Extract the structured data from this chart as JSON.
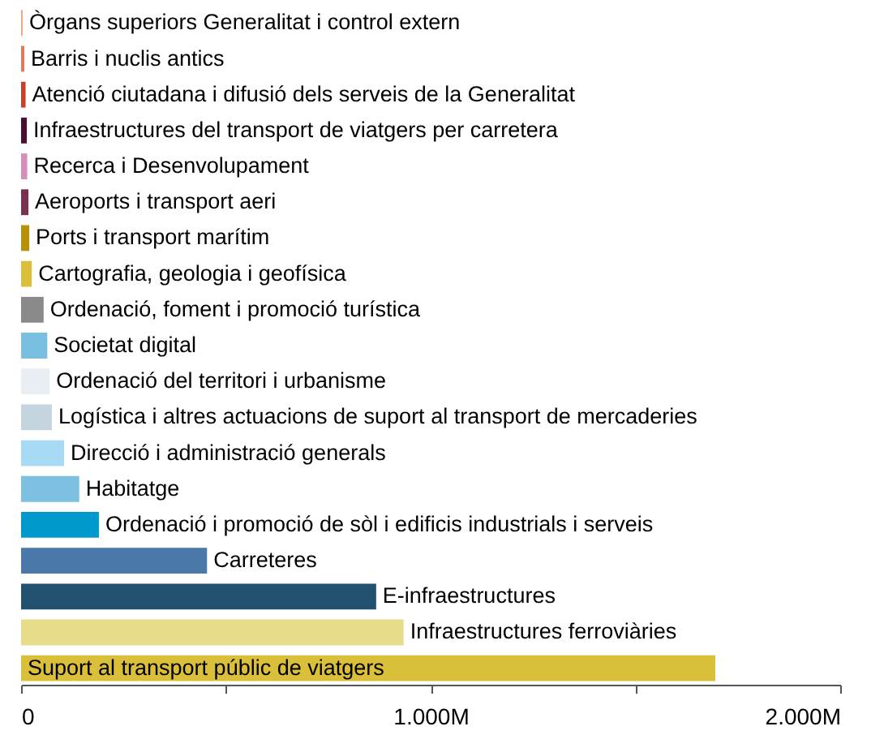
{
  "chart_data": {
    "type": "bar",
    "orientation": "horizontal",
    "categories": [
      "Òrgans superiors Generalitat i control extern",
      "Barris i nuclis antics",
      "Atenció ciutadana i difusió dels serveis de la Generalitat",
      "Infraestructures del transport de viatgers per carretera",
      "Recerca i Desenvolupament",
      "Aeroports i transport aeri",
      "Ports i transport marítim",
      "Cartografia, geologia i geofísica",
      "Ordenació, foment i promoció turística",
      "Societat digital",
      "Ordenació del territori i urbanisme",
      "Logística i altres actuacions de suport al transport de mercaderies",
      "Direcció i administració generals",
      "Habitatge",
      "Ordenació i promoció de sòl i edificis industrials i serveis",
      "Carreteres",
      "E-infraestructures",
      "Infraestructures ferroviàries",
      "Suport al transport públic de viatgers"
    ],
    "values": [
      4,
      8,
      11,
      14,
      15,
      18,
      20,
      26,
      55,
      64,
      70,
      75,
      105,
      142,
      190,
      454,
      867,
      934,
      1695
    ],
    "colors": [
      "#f4a582",
      "#e07b5a",
      "#c8402a",
      "#4a0f2e",
      "#d68fba",
      "#7a3050",
      "#b8900a",
      "#d9bf3a",
      "#8a8a8a",
      "#78bfe0",
      "#e8eef3",
      "#c5d5e0",
      "#a6daf5",
      "#7ec0e0",
      "#0099cc",
      "#4a78a8",
      "#22506f",
      "#e6dc8c",
      "#d9bf3a"
    ],
    "xlim": [
      0,
      2000
    ],
    "xticks": [
      0,
      {
        "value": 500,
        "label": null
      },
      {
        "value": 1000,
        "label": "1.000M"
      },
      {
        "value": 1500,
        "label": null
      },
      {
        "value": 2000,
        "label": "2.000M"
      }
    ],
    "grid": false
  }
}
